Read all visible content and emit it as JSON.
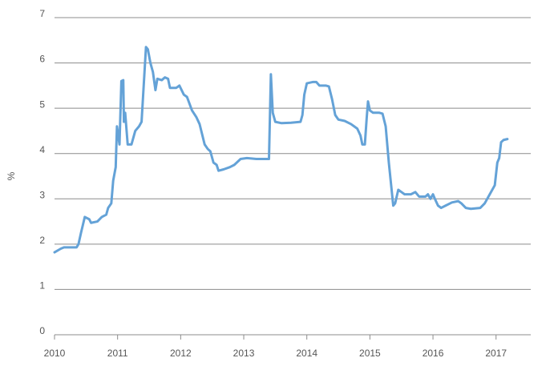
{
  "chart_data": {
    "type": "line",
    "y_label": "%",
    "x": [
      2010.0,
      2010.1,
      2010.15,
      2010.35,
      2010.38,
      2010.42,
      2010.48,
      2010.55,
      2010.58,
      2010.68,
      2010.75,
      2010.82,
      2010.85,
      2010.9,
      2010.93,
      2010.97,
      2010.99,
      2011.03,
      2011.06,
      2011.09,
      2011.1,
      2011.12,
      2011.16,
      2011.22,
      2011.28,
      2011.34,
      2011.38,
      2011.45,
      2011.48,
      2011.52,
      2011.56,
      2011.6,
      2011.63,
      2011.7,
      2011.75,
      2011.8,
      2011.83,
      2011.93,
      2011.98,
      2012.05,
      2012.1,
      2012.18,
      2012.25,
      2012.3,
      2012.38,
      2012.43,
      2012.47,
      2012.52,
      2012.57,
      2012.6,
      2012.68,
      2012.78,
      2012.85,
      2012.95,
      2013.05,
      2013.2,
      2013.35,
      2013.4,
      2013.43,
      2013.46,
      2013.5,
      2013.6,
      2013.75,
      2013.9,
      2013.93,
      2013.96,
      2014.0,
      2014.1,
      2014.15,
      2014.2,
      2014.3,
      2014.35,
      2014.4,
      2014.45,
      2014.5,
      2014.6,
      2014.7,
      2014.75,
      2014.8,
      2014.85,
      2014.88,
      2014.92,
      2014.95,
      2014.97,
      2015.0,
      2015.05,
      2015.15,
      2015.2,
      2015.25,
      2015.3,
      2015.37,
      2015.4,
      2015.45,
      2015.5,
      2015.55,
      2015.65,
      2015.72,
      2015.78,
      2015.88,
      2015.92,
      2015.96,
      2016.0,
      2016.03,
      2016.08,
      2016.13,
      2016.2,
      2016.3,
      2016.4,
      2016.45,
      2016.52,
      2016.6,
      2016.75,
      2016.82,
      2016.9,
      2016.98,
      2017.02,
      2017.05,
      2017.08,
      2017.12,
      2017.18
    ],
    "series": [
      {
        "color": "#64a2d7",
        "values": [
          1.82,
          1.9,
          1.93,
          1.93,
          2.0,
          2.25,
          2.6,
          2.55,
          2.47,
          2.5,
          2.6,
          2.65,
          2.8,
          2.9,
          3.4,
          3.7,
          4.6,
          4.2,
          5.6,
          5.62,
          4.7,
          4.9,
          4.2,
          4.2,
          4.5,
          4.6,
          4.7,
          6.35,
          6.3,
          6.0,
          5.8,
          5.4,
          5.65,
          5.62,
          5.68,
          5.65,
          5.45,
          5.45,
          5.5,
          5.3,
          5.25,
          4.95,
          4.8,
          4.65,
          4.2,
          4.1,
          4.05,
          3.8,
          3.75,
          3.62,
          3.65,
          3.7,
          3.75,
          3.88,
          3.9,
          3.88,
          3.88,
          3.88,
          5.75,
          4.9,
          4.7,
          4.67,
          4.68,
          4.7,
          4.85,
          5.3,
          5.55,
          5.58,
          5.58,
          5.5,
          5.5,
          5.48,
          5.2,
          4.85,
          4.75,
          4.72,
          4.65,
          4.6,
          4.55,
          4.4,
          4.2,
          4.2,
          4.8,
          5.15,
          4.95,
          4.9,
          4.9,
          4.88,
          4.6,
          3.8,
          2.85,
          2.9,
          3.2,
          3.15,
          3.1,
          3.1,
          3.15,
          3.05,
          3.05,
          3.1,
          3.0,
          3.1,
          3.0,
          2.85,
          2.8,
          2.85,
          2.92,
          2.95,
          2.9,
          2.8,
          2.78,
          2.8,
          2.9,
          3.1,
          3.3,
          3.8,
          3.9,
          4.25,
          4.3,
          4.32
        ]
      }
    ],
    "xlim": [
      2010,
      2017.55
    ],
    "xticks": [
      2010,
      2011,
      2012,
      2013,
      2014,
      2015,
      2016,
      2017
    ],
    "ylim": [
      0,
      7
    ],
    "yticks": [
      0,
      1,
      2,
      3,
      4,
      5,
      6,
      7
    ],
    "grid": true
  }
}
